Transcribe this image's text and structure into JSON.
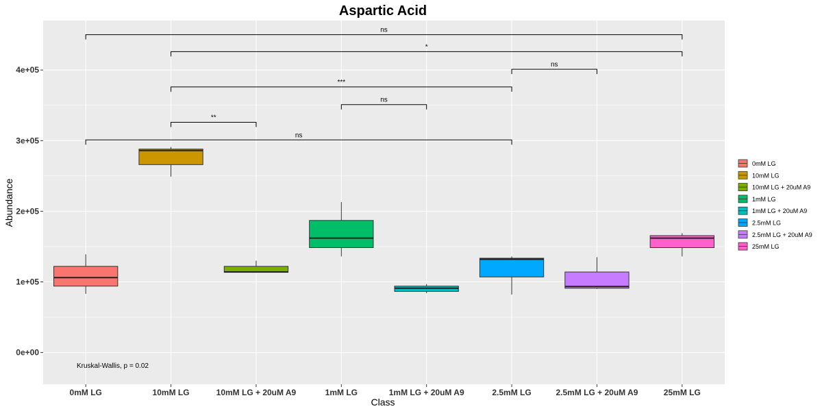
{
  "chart_data": {
    "type": "box",
    "title": "Aspartic Acid",
    "xlabel": "Class",
    "ylabel": "Abundance",
    "ylim": [
      -45000,
      470000
    ],
    "y_ticks": [
      0,
      100000,
      200000,
      300000,
      400000
    ],
    "y_tick_labels": [
      "0e+00",
      "1e+05",
      "2e+05",
      "3e+05",
      "4e+05"
    ],
    "categories": [
      "0mM LG",
      "10mM LG",
      "10mM LG + 20uM A9",
      "1mM LG",
      "1mM LG + 20uM A9",
      "2.5mM LG",
      "2.5mM LG + 20uM A9",
      "25mM LG"
    ],
    "colors": [
      "#F8766D",
      "#CD9600",
      "#7CAE00",
      "#00BE67",
      "#00BFC4",
      "#00A9FF",
      "#C77CFF",
      "#FF61CC"
    ],
    "boxes": [
      {
        "min": 83000,
        "q1": 94000,
        "median": 106000,
        "q3": 122000,
        "max": 139000
      },
      {
        "min": 249000,
        "q1": 266000,
        "median": 286000,
        "q3": 288000,
        "max": 291000
      },
      {
        "min": 113000,
        "q1": 113500,
        "median": 114000,
        "q3": 122000,
        "max": 130000
      },
      {
        "min": 136000,
        "q1": 148500,
        "median": 162000,
        "q3": 187000,
        "max": 213000
      },
      {
        "min": 84000,
        "q1": 86500,
        "median": 91000,
        "q3": 94000,
        "max": 97000
      },
      {
        "min": 82000,
        "q1": 107000,
        "median": 132000,
        "q3": 133500,
        "max": 136000
      },
      {
        "min": 90000,
        "q1": 91000,
        "median": 93500,
        "q3": 114000,
        "max": 135000
      },
      {
        "min": 136000,
        "q1": 148500,
        "median": 162000,
        "q3": 165500,
        "max": 169000
      }
    ],
    "comparisons": [
      {
        "from": 0,
        "to": 7,
        "y": 450000,
        "label": "ns"
      },
      {
        "from": 1,
        "to": 7,
        "y": 426000,
        "label": "*"
      },
      {
        "from": 5,
        "to": 6,
        "y": 401000,
        "label": "ns"
      },
      {
        "from": 1,
        "to": 5,
        "y": 376000,
        "label": "***"
      },
      {
        "from": 3,
        "to": 4,
        "y": 351000,
        "label": "ns"
      },
      {
        "from": 1,
        "to": 2,
        "y": 326000,
        "label": "**"
      },
      {
        "from": 0,
        "to": 5,
        "y": 301000,
        "label": "ns"
      }
    ],
    "annotation": "Kruskal-Wallis, p = 0.02",
    "legend_position": "right",
    "grid": true
  }
}
